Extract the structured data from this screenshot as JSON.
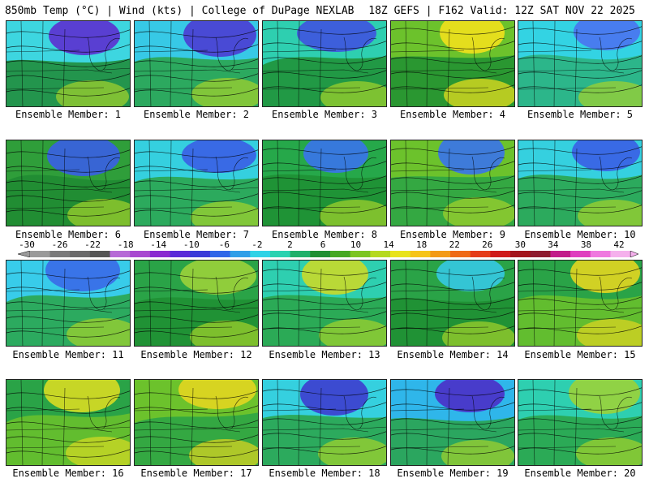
{
  "header": {
    "left": "850mb Temp (°C) | Wind (kts) | College of DuPage NEXLAB",
    "right": "18Z GEFS | F162 Valid: 12Z SAT NOV 22 2025"
  },
  "members": [
    {
      "label": "Ensemble Member: 1",
      "scheme": [
        "#3dd6e0",
        "#1f8a33",
        "#5c2fd0"
      ]
    },
    {
      "label": "Ensemble Member: 2",
      "scheme": [
        "#37c9e6",
        "#2aa347",
        "#4b3cd3"
      ]
    },
    {
      "label": "Ensemble Member: 3",
      "scheme": [
        "#2ecfb0",
        "#1e8f33",
        "#3f52e0"
      ]
    },
    {
      "label": "Ensemble Member: 4",
      "scheme": [
        "#6cc22c",
        "#1e8f33",
        "#f2e11c"
      ]
    },
    {
      "label": "Ensemble Member: 5",
      "scheme": [
        "#33d3e3",
        "#2bb07a",
        "#4a73f0"
      ]
    },
    {
      "label": "Ensemble Member: 6",
      "scheme": [
        "#2f9e3a",
        "#1f8a33",
        "#3a5ee6"
      ]
    },
    {
      "label": "Ensemble Member: 7",
      "scheme": [
        "#35d0df",
        "#2aa347",
        "#3a5ee6"
      ]
    },
    {
      "label": "Ensemble Member: 8",
      "scheme": [
        "#26a84a",
        "#1e8f33",
        "#3a73ec"
      ]
    },
    {
      "label": "Ensemble Member: 9",
      "scheme": [
        "#6cc22c",
        "#2aa347",
        "#3a73ec"
      ]
    },
    {
      "label": "Ensemble Member: 10",
      "scheme": [
        "#35d0df",
        "#2aa347",
        "#3a5ee6"
      ]
    },
    {
      "label": "Ensemble Member: 11",
      "scheme": [
        "#38ccea",
        "#2aa347",
        "#3a6ae8"
      ]
    },
    {
      "label": "Ensemble Member: 12",
      "scheme": [
        "#2aa347",
        "#1e8f33",
        "#9bd23a"
      ]
    },
    {
      "label": "Ensemble Member: 13",
      "scheme": [
        "#2ecfb0",
        "#2aa347",
        "#c9d92a"
      ]
    },
    {
      "label": "Ensemble Member: 14",
      "scheme": [
        "#2aa347",
        "#1e8f33",
        "#35c9e3"
      ]
    },
    {
      "label": "Ensemble Member: 15",
      "scheme": [
        "#2aa347",
        "#6cc22c",
        "#e3d620"
      ]
    },
    {
      "label": "Ensemble Member: 16",
      "scheme": [
        "#2aa347",
        "#6cc22c",
        "#d8dc22"
      ]
    },
    {
      "label": "Ensemble Member: 17",
      "scheme": [
        "#6cc22c",
        "#2aa347",
        "#e3d620"
      ]
    },
    {
      "label": "Ensemble Member: 18",
      "scheme": [
        "#35d0df",
        "#2aa347",
        "#3d3ccf"
      ]
    },
    {
      "label": "Ensemble Member: 19",
      "scheme": [
        "#2fb6ea",
        "#2aa347",
        "#4b2fc8"
      ]
    },
    {
      "label": "Ensemble Member: 20",
      "scheme": [
        "#2ecfb0",
        "#2aa347",
        "#9bd23a"
      ]
    }
  ],
  "colorbar": {
    "ticks": [
      "-30",
      "-26",
      "-22",
      "-18",
      "-14",
      "-10",
      "-6",
      "-2",
      "2",
      "6",
      "10",
      "14",
      "18",
      "22",
      "26",
      "30",
      "34",
      "38",
      "42"
    ],
    "colors": [
      "#9a9a9a",
      "#7a7a7a",
      "#6a6a6a",
      "#555555",
      "#b66ad6",
      "#a848d0",
      "#8a2ad0",
      "#5a2ad8",
      "#3a3ad8",
      "#2f66e8",
      "#2f9ee8",
      "#2fd2e6",
      "#2ad2b0",
      "#1fb06a",
      "#1e8f33",
      "#46a823",
      "#7cc522",
      "#b5d91f",
      "#e8e31c",
      "#f6c418",
      "#f39a16",
      "#ef6a16",
      "#e53b17",
      "#cf1a1a",
      "#a3141c",
      "#8e1a2e",
      "#c21c8a",
      "#df3fbf",
      "#ef79df",
      "#f5b0ec"
    ]
  }
}
